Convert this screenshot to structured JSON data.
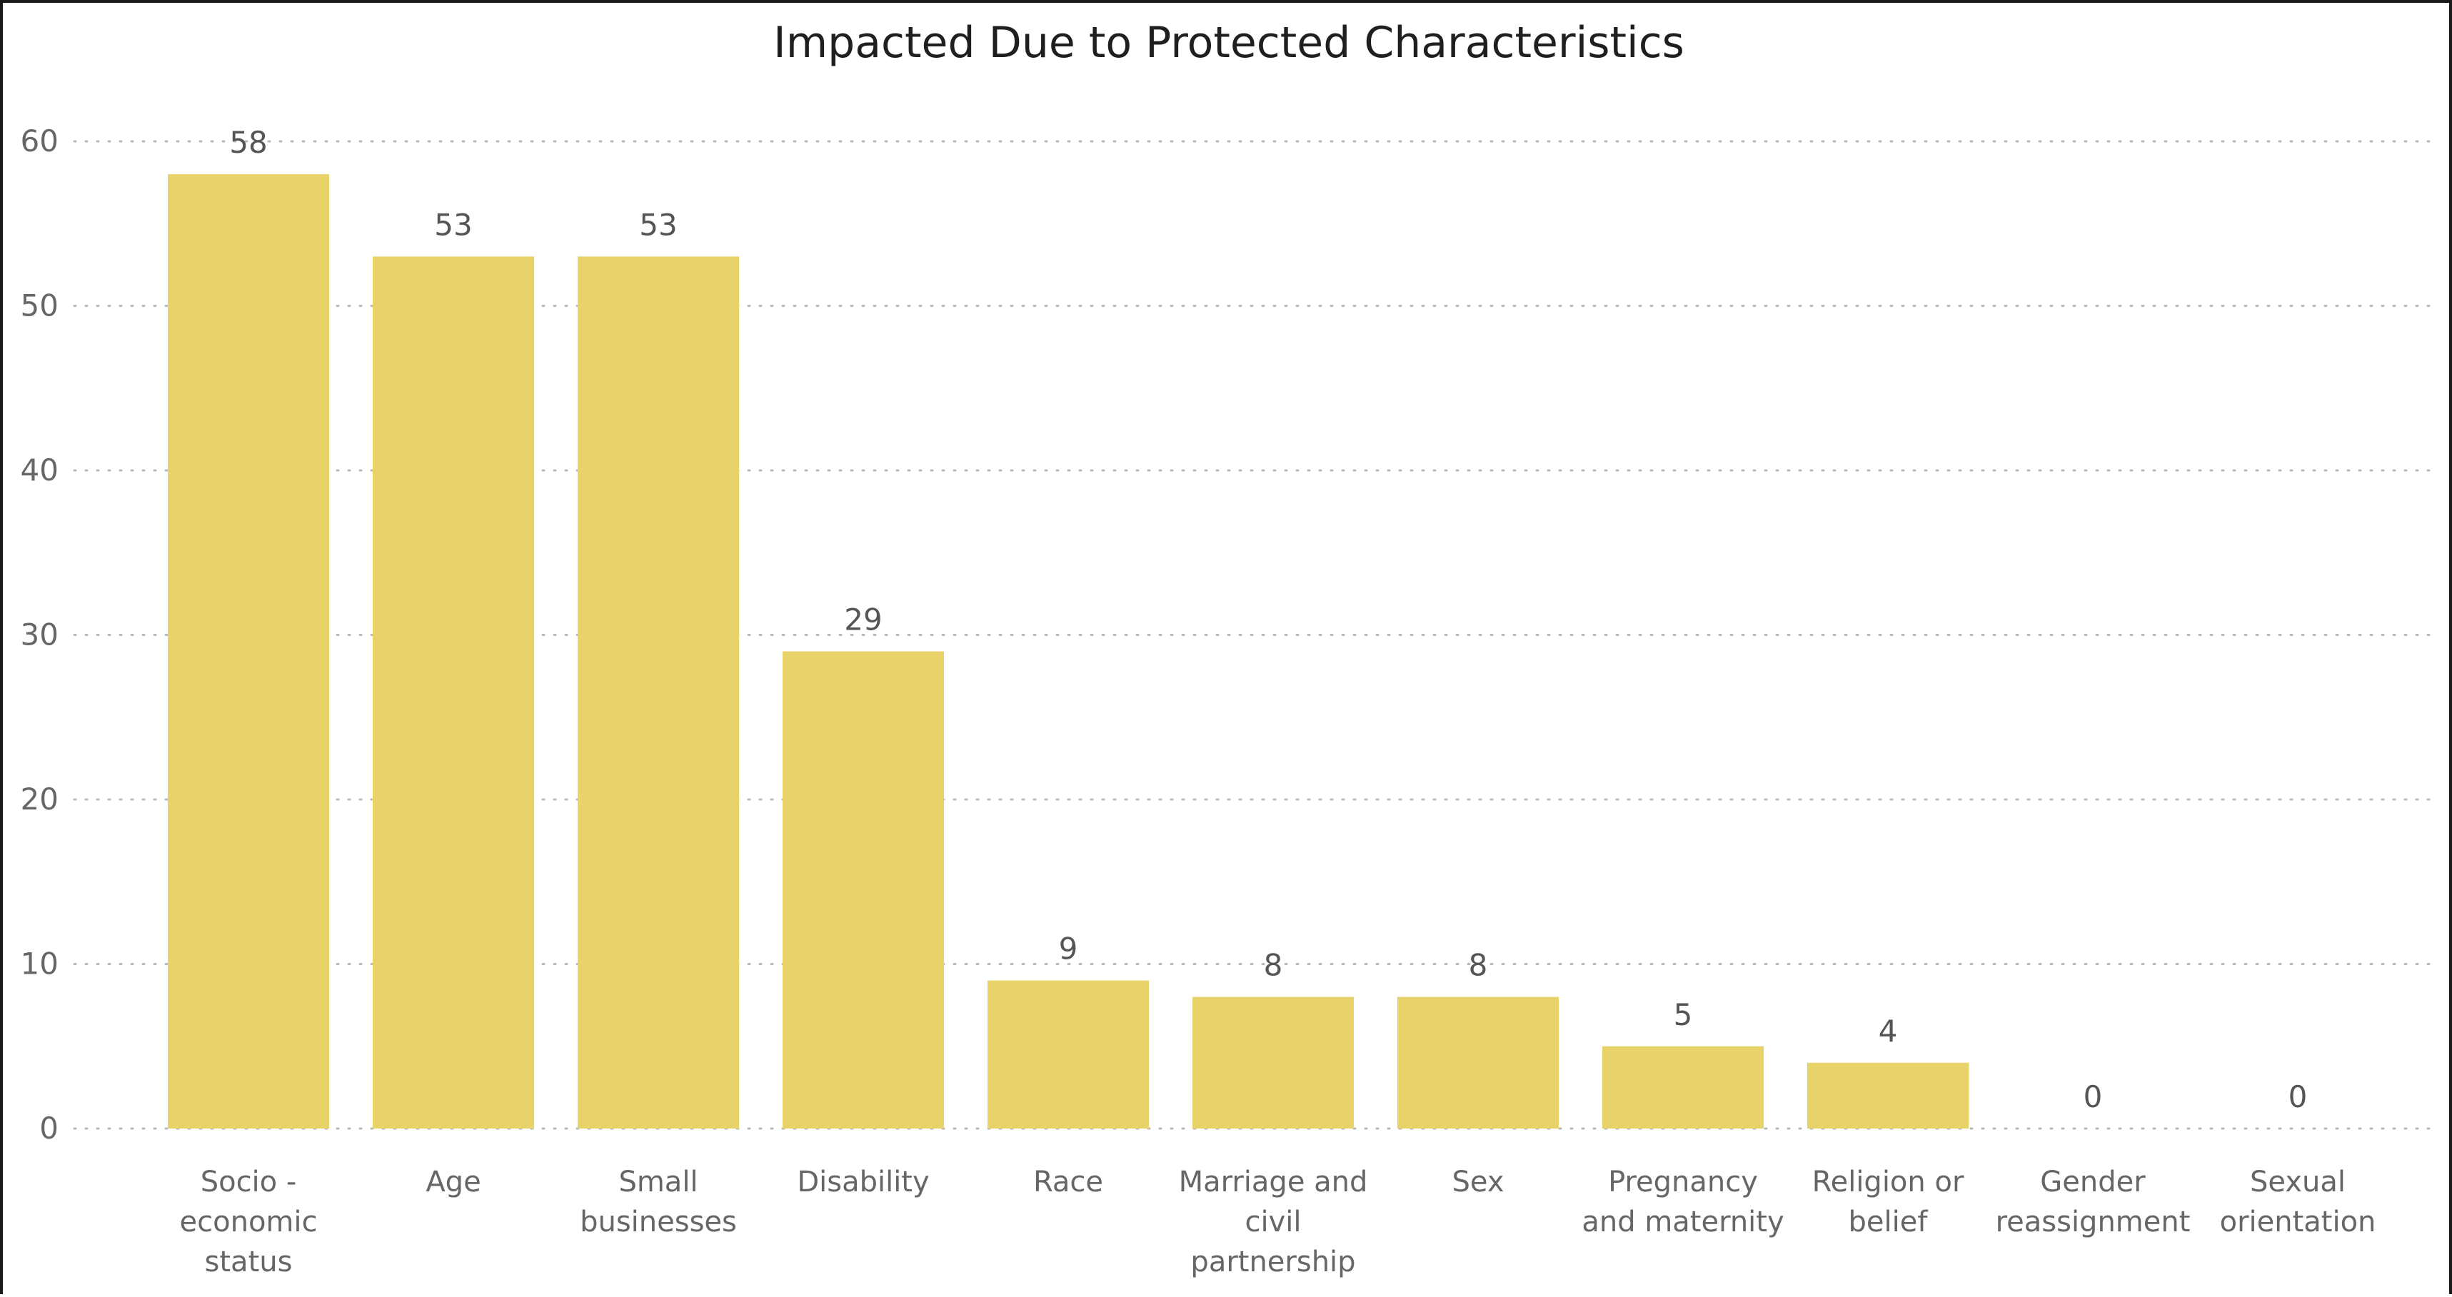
{
  "chart_data": {
    "type": "bar",
    "title": "Impacted Due to Protected Characteristics",
    "categories": [
      [
        "Socio -",
        "economic",
        "status"
      ],
      [
        "Age"
      ],
      [
        "Small",
        "businesses"
      ],
      [
        "Disability"
      ],
      [
        "Race"
      ],
      [
        "Marriage and",
        "civil",
        "partnership"
      ],
      [
        "Sex"
      ],
      [
        "Pregnancy",
        "and maternity"
      ],
      [
        "Religion or",
        "belief"
      ],
      [
        "Gender",
        "reassignment"
      ],
      [
        "Sexual",
        "orientation"
      ]
    ],
    "values": [
      58,
      53,
      53,
      29,
      9,
      8,
      8,
      5,
      4,
      0,
      0
    ],
    "y_ticks": [
      "0",
      "10",
      "20",
      "30",
      "40",
      "50",
      "60"
    ],
    "ylim": [
      0,
      60
    ],
    "grid": true,
    "bar_color": "#E8D26A",
    "data_labels": true
  }
}
